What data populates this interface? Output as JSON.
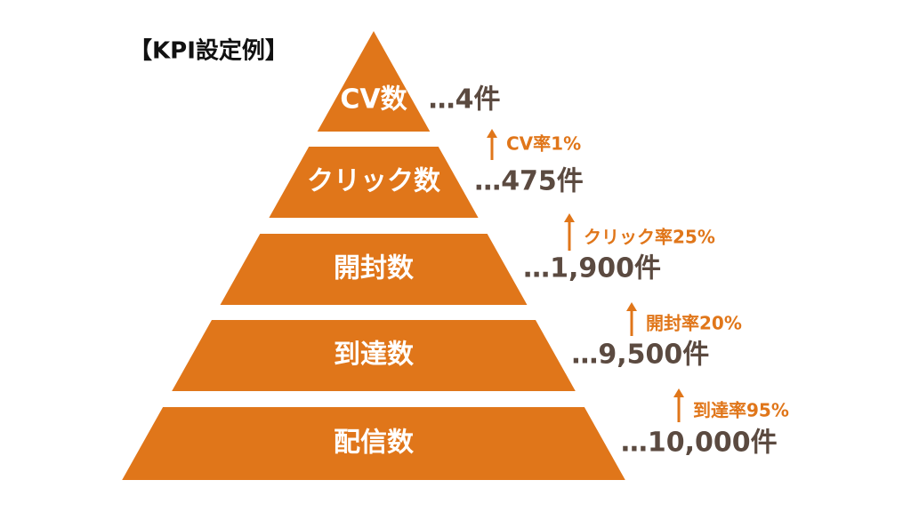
{
  "title": "【KPI設定例】",
  "levels": [
    {
      "label": "CV数",
      "value": "…4件"
    },
    {
      "label": "クリック数",
      "value": "…475件"
    },
    {
      "label": "開封数",
      "value": "…1,900件"
    },
    {
      "label": "到達数",
      "value": "…9,500件"
    },
    {
      "label": "配信数",
      "value": "…10,000件"
    }
  ],
  "rates": [
    "CV率1%",
    "クリック率25%",
    "開封率20%",
    "到達率95%"
  ]
}
